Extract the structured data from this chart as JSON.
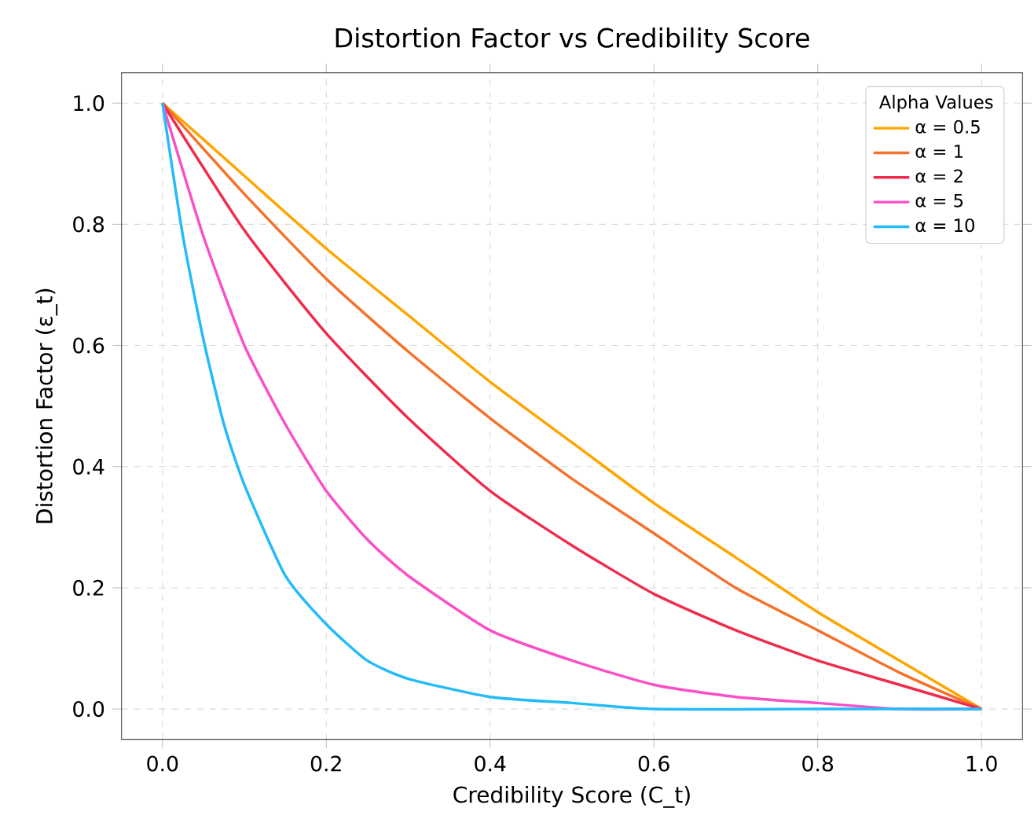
{
  "chart_data": {
    "type": "line",
    "title": "Distortion Factor vs Credibility Score",
    "xlabel": "Credibility Score (C_t)",
    "ylabel": "Distortion Factor (ε_t)",
    "legend_title": "Alpha Values",
    "legend": "top right",
    "grid": true,
    "marker": "none",
    "line_style": "solid",
    "xlim": [
      -0.05,
      1.05
    ],
    "ylim": [
      -0.05,
      1.05
    ],
    "xticks": [
      {
        "value": 0,
        "label": "0.0"
      },
      0.2,
      0.4,
      0.6,
      0.8,
      {
        "value": 1,
        "label": "1.0"
      }
    ],
    "yticks": [
      {
        "value": 0,
        "label": "0.0"
      },
      0.2,
      0.4,
      0.6,
      0.8,
      {
        "value": 1,
        "label": "1.0"
      }
    ],
    "series": [
      {
        "name": "α = 0.5",
        "color": "#ffa500",
        "x": [
          0,
          0.1,
          0.2,
          0.3,
          0.4,
          0.5,
          0.6,
          0.7,
          0.8,
          0.9,
          1
        ],
        "values": [
          1,
          0.88,
          0.76,
          0.65,
          0.54,
          0.44,
          0.34,
          0.25,
          0.16,
          0.08,
          0
        ]
      },
      {
        "name": "α = 1",
        "color": "#f4722b",
        "x": [
          0,
          0.1,
          0.2,
          0.3,
          0.4,
          0.5,
          0.6,
          0.7,
          0.8,
          0.9,
          1
        ],
        "values": [
          1,
          0.85,
          0.71,
          0.59,
          0.48,
          0.38,
          0.29,
          0.2,
          0.13,
          0.06,
          0
        ]
      },
      {
        "name": "α = 2",
        "color": "#ee2c4c",
        "x": [
          0,
          0.1,
          0.2,
          0.3,
          0.4,
          0.5,
          0.6,
          0.7,
          0.8,
          0.9,
          1
        ],
        "values": [
          1,
          0.79,
          0.62,
          0.48,
          0.36,
          0.27,
          0.19,
          0.13,
          0.08,
          0.04,
          0
        ]
      },
      {
        "name": "α = 5",
        "color": "#fb4fc6",
        "x": [
          0,
          0.05,
          0.1,
          0.15,
          0.2,
          0.25,
          0.3,
          0.4,
          0.5,
          0.6,
          0.7,
          0.8,
          0.9,
          1
        ],
        "values": [
          1,
          0.78,
          0.6,
          0.47,
          0.36,
          0.28,
          0.22,
          0.13,
          0.08,
          0.04,
          0.02,
          0.01,
          0,
          0
        ]
      },
      {
        "name": "α = 10",
        "color": "#23bbf8",
        "x": [
          0,
          0.025,
          0.05,
          0.075,
          0.1,
          0.15,
          0.2,
          0.25,
          0.3,
          0.4,
          0.5,
          0.6,
          0.8,
          1
        ],
        "values": [
          1,
          0.78,
          0.61,
          0.47,
          0.37,
          0.22,
          0.14,
          0.08,
          0.05,
          0.02,
          0.01,
          0,
          0,
          0
        ]
      }
    ]
  }
}
